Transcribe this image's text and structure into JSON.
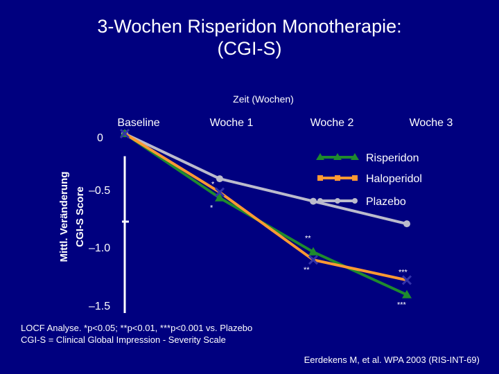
{
  "title": {
    "line1": "3-Wochen Risperidon Monotherapie:",
    "line2": "(CGI-S)"
  },
  "colors": {
    "background": "#00007f",
    "text": "#ffffff",
    "axis": "#ffffff",
    "Risperidon": "#1f8a2e",
    "Haloperidol": "#ff9933",
    "Plazebo": "#bbbbcc",
    "cross_marker": "#3333aa"
  },
  "chart_data": {
    "type": "line",
    "title": "",
    "xlabel": "Zeit (Wochen)",
    "ylabel_line1": "Mittl. Veränderung",
    "ylabel_line2": "CGI-S Score",
    "categories": [
      "Baseline",
      "Woche 1",
      "Woche 2",
      "Woche 3"
    ],
    "y_ticks": [
      {
        "value": 0,
        "label": "0"
      },
      {
        "value": -0.5,
        "label": "–0.5"
      },
      {
        "value": -1.0,
        "label": "–1.0"
      },
      {
        "value": -1.5,
        "label": "–1.5"
      }
    ],
    "ylim": [
      -1.5,
      0
    ],
    "series": [
      {
        "name": "Risperidon",
        "marker": "triangle",
        "values": [
          0,
          -0.57,
          -1.05,
          -1.43
        ]
      },
      {
        "name": "Haloperidol",
        "marker": "cross",
        "values": [
          0,
          -0.52,
          -1.12,
          -1.3
        ]
      },
      {
        "name": "Plazebo",
        "marker": "circle",
        "values": [
          0,
          -0.4,
          -0.6,
          -0.8
        ]
      }
    ],
    "annotations": [
      {
        "x": "Woche 1",
        "y": -0.52,
        "text": "*",
        "position": "above"
      },
      {
        "x": "Woche 1",
        "y": -0.57,
        "text": "*",
        "position": "below"
      },
      {
        "x": "Woche 2",
        "y": -1.0,
        "text": "**",
        "position": "above"
      },
      {
        "x": "Woche 2",
        "y": -1.12,
        "text": "**",
        "position": "below"
      },
      {
        "x": "Woche 3",
        "y": -1.3,
        "text": "***",
        "position": "above"
      },
      {
        "x": "Woche 3",
        "y": -1.43,
        "text": "***",
        "position": "below"
      }
    ],
    "legend": {
      "placement": "top-right",
      "entries": [
        "Risperidon",
        "Haloperidol",
        "Plazebo"
      ]
    },
    "grid": false
  },
  "footnotes": {
    "line1": "LOCF Analyse. *p<0.05; **p<0.01, ***p<0.001 vs. Plazebo",
    "line2": "CGI-S = Clinical Global Impression - Severity Scale"
  },
  "citation": "Eerdekens M, et al. WPA 2003 (RIS-INT-69)"
}
